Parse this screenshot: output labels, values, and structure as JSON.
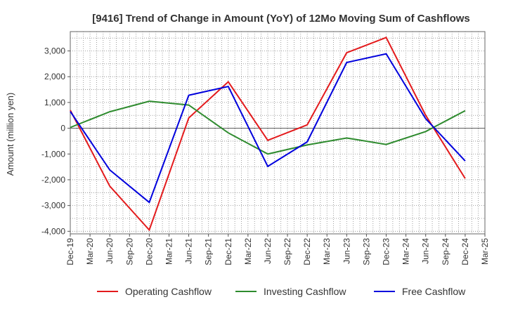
{
  "chart_data": {
    "type": "line",
    "title": "[9416]  Trend of Change in Amount (YoY) of 12Mo Moving Sum of Cashflows",
    "xlabel": "",
    "ylabel": "Amount (million yen)",
    "ylim": [
      -4100,
      3750
    ],
    "yticks": [
      3000,
      2000,
      1000,
      0,
      -1000,
      -2000,
      -3000,
      -4000
    ],
    "ytick_labels": [
      "3,000",
      "2,000",
      "1,000",
      "0",
      "-1,000",
      "-2,000",
      "-3,000",
      "-4,000"
    ],
    "x_tick_labels": [
      "Dec-19",
      "Mar-20",
      "Jun-20",
      "Sep-20",
      "Dec-20",
      "Mar-21",
      "Jun-21",
      "Sep-21",
      "Dec-21",
      "Mar-22",
      "Jun-22",
      "Sep-22",
      "Dec-22",
      "Mar-23",
      "Jun-23",
      "Sep-23",
      "Dec-23",
      "Mar-24",
      "Jun-24",
      "Sep-24",
      "Dec-24",
      "Mar-25"
    ],
    "categories": [
      "Dec-19",
      "Jun-20",
      "Dec-20",
      "Jun-21",
      "Dec-21",
      "Jun-22",
      "Dec-22",
      "Jun-23",
      "Dec-23",
      "Jun-24",
      "Dec-24"
    ],
    "grid": true,
    "legend_position": "bottom",
    "series": [
      {
        "name": "Operating Cashflow",
        "color": "#e31a1c",
        "values": [
          700,
          -2250,
          -3950,
          400,
          1800,
          -470,
          130,
          2930,
          3520,
          500,
          -1950
        ]
      },
      {
        "name": "Investing Cashflow",
        "color": "#2e8b2e",
        "values": [
          30,
          640,
          1050,
          900,
          -180,
          -1000,
          -650,
          -380,
          -630,
          -130,
          680
        ]
      },
      {
        "name": "Free Cashflow",
        "color": "#0000dd",
        "values": [
          650,
          -1620,
          -2880,
          1280,
          1620,
          -1480,
          -530,
          2550,
          2890,
          370,
          -1270
        ]
      }
    ]
  }
}
